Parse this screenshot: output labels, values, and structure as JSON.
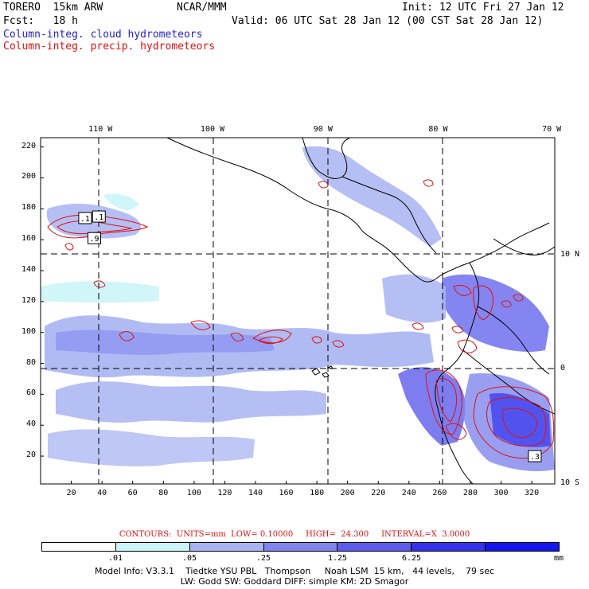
{
  "header": {
    "model": "TORERO  15km ARW",
    "center": "NCAR/MMM",
    "init": "Init: 12 UTC Fri 27 Jan 12",
    "fcst": "Fcst:   18 h",
    "valid": "Valid: 06 UTC Sat 28 Jan 12 (00 CST Sat 28 Jan 12)",
    "field1": "Column-integ. cloud hydrometeors",
    "field2": "Column-integ. precip. hydrometeors"
  },
  "colors": {
    "field1": "#1f1fd6",
    "field2": "#e01010",
    "land": "#000000",
    "grid": "#000000"
  },
  "chart_data": {
    "type": "heatmap",
    "title": "Column-integ. cloud hydrometeors (shaded) / Column-integ. precip. hydrometeors (contours)",
    "x_grid_ticks": [
      "20",
      "40",
      "60",
      "80",
      "100",
      "120",
      "140",
      "160",
      "180",
      "200",
      "220",
      "240",
      "260",
      "280",
      "300",
      "320"
    ],
    "y_grid_ticks": [
      "20",
      "40",
      "60",
      "80",
      "100",
      "120",
      "140",
      "160",
      "180",
      "200",
      "220"
    ],
    "xlim": [
      0,
      335
    ],
    "ylim": [
      2,
      226
    ],
    "lon_labels": [
      {
        "label": "110 W",
        "x": 39
      },
      {
        "label": "100 W",
        "x": 112
      },
      {
        "label": "90 W",
        "x": 184
      },
      {
        "label": "80 W",
        "x": 259
      },
      {
        "label": "70 W",
        "x": 333
      }
    ],
    "lat_labels": [
      {
        "label": "10 N",
        "y": 150
      },
      {
        "label": "0",
        "y": 76
      },
      {
        "label": "10 S",
        "y": 2
      }
    ],
    "contours": {
      "label": "CONTOURS:  UNITS=mm  LOW= 0.10000     HIGH=  24.300     INTERVAL=X  3.0000",
      "units": "mm",
      "low": 0.1,
      "high": 24.3,
      "interval": "X 3.0000"
    },
    "contour_box_labels": [
      {
        "text": ".1",
        "x": 29,
        "y": 174
      },
      {
        "text": ".1",
        "x": 38,
        "y": 175
      },
      {
        "text": ".9",
        "x": 35,
        "y": 161
      },
      {
        "text": ".3",
        "x": 322,
        "y": 20
      }
    ],
    "colorbar": {
      "labels": [
        ".01",
        ".05",
        ".25",
        "1.25",
        "6.25"
      ],
      "units": "mm",
      "colors": [
        "#ffffff",
        "#ccf5fa",
        "#a8b4f2",
        "#7f86ee",
        "#5c5cec",
        "#3333ee",
        "#1515ee"
      ]
    }
  },
  "footer": {
    "line1": "Model Info: V3.3.1    Tiedtke YSU PBL   Thompson     Noah LSM  15 km,   44 levels,    79 sec",
    "line2": "LW: Godd SW: Goddard DIFF: simple KM: 2D Smagor"
  }
}
